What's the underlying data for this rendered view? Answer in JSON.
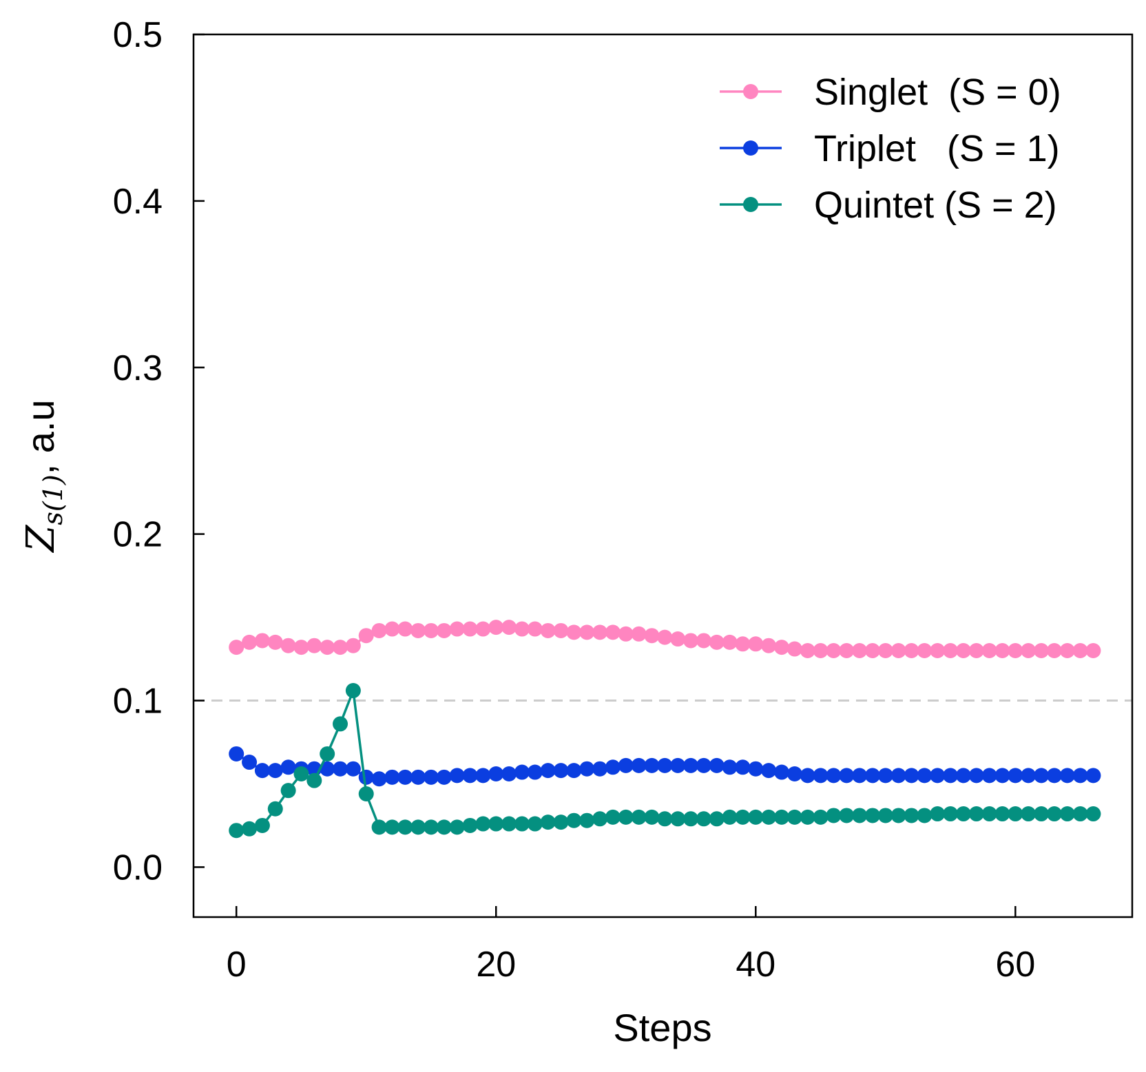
{
  "chart_data": {
    "type": "line",
    "xlabel": "Steps",
    "ylabel": {
      "symbol": "Z",
      "subscript": "s(1)",
      "suffix": ", a.u"
    },
    "xlim": [
      -3.3,
      69
    ],
    "ylim": [
      -0.03,
      0.5
    ],
    "xticks": [
      0,
      20,
      40,
      60
    ],
    "yticks": [
      0.0,
      0.1,
      0.2,
      0.3,
      0.4,
      0.5
    ],
    "xtick_labels": [
      "0",
      "20",
      "40",
      "60"
    ],
    "ytick_labels": [
      "0.0",
      "0.1",
      "0.2",
      "0.3",
      "0.4",
      "0.5"
    ],
    "reference_line": {
      "y": 0.1,
      "style": "dashed",
      "color": "#cccccc"
    },
    "grid": false,
    "legend_position": "top-right",
    "x": [
      0,
      1,
      2,
      3,
      4,
      5,
      6,
      7,
      8,
      9,
      10,
      11,
      12,
      13,
      14,
      15,
      16,
      17,
      18,
      19,
      20,
      21,
      22,
      23,
      24,
      25,
      26,
      27,
      28,
      29,
      30,
      31,
      32,
      33,
      34,
      35,
      36,
      37,
      38,
      39,
      40,
      41,
      42,
      43,
      44,
      45,
      46,
      47,
      48,
      49,
      50,
      51,
      52,
      53,
      54,
      55,
      56,
      57,
      58,
      59,
      60,
      61,
      62,
      63,
      64,
      65,
      66
    ],
    "series": [
      {
        "name": "Singlet  (S = 0)",
        "color": "#ff85c0",
        "values": [
          0.132,
          0.135,
          0.136,
          0.135,
          0.133,
          0.132,
          0.133,
          0.132,
          0.132,
          0.133,
          0.139,
          0.142,
          0.143,
          0.143,
          0.142,
          0.142,
          0.142,
          0.143,
          0.143,
          0.143,
          0.144,
          0.144,
          0.143,
          0.143,
          0.142,
          0.142,
          0.141,
          0.141,
          0.141,
          0.141,
          0.14,
          0.14,
          0.139,
          0.138,
          0.137,
          0.136,
          0.136,
          0.135,
          0.135,
          0.134,
          0.134,
          0.133,
          0.132,
          0.131,
          0.13,
          0.13,
          0.13,
          0.13,
          0.13,
          0.13,
          0.13,
          0.13,
          0.13,
          0.13,
          0.13,
          0.13,
          0.13,
          0.13,
          0.13,
          0.13,
          0.13,
          0.13,
          0.13,
          0.13,
          0.13,
          0.13,
          0.13
        ]
      },
      {
        "name": "Triplet   (S = 1)",
        "color": "#0b3ee0",
        "values": [
          0.068,
          0.063,
          0.058,
          0.058,
          0.06,
          0.059,
          0.059,
          0.059,
          0.059,
          0.059,
          0.054,
          0.053,
          0.054,
          0.054,
          0.054,
          0.054,
          0.054,
          0.055,
          0.055,
          0.055,
          0.056,
          0.056,
          0.057,
          0.057,
          0.058,
          0.058,
          0.058,
          0.059,
          0.059,
          0.06,
          0.061,
          0.061,
          0.061,
          0.061,
          0.061,
          0.061,
          0.061,
          0.061,
          0.06,
          0.06,
          0.059,
          0.058,
          0.057,
          0.056,
          0.055,
          0.055,
          0.055,
          0.055,
          0.055,
          0.055,
          0.055,
          0.055,
          0.055,
          0.055,
          0.055,
          0.055,
          0.055,
          0.055,
          0.055,
          0.055,
          0.055,
          0.055,
          0.055,
          0.055,
          0.055,
          0.055,
          0.055
        ]
      },
      {
        "name": "Quintet (S = 2)",
        "color": "#049080",
        "values": [
          0.022,
          0.023,
          0.025,
          0.035,
          0.046,
          0.056,
          0.052,
          0.068,
          0.086,
          0.106,
          0.044,
          0.024,
          0.024,
          0.024,
          0.024,
          0.024,
          0.024,
          0.024,
          0.025,
          0.026,
          0.026,
          0.026,
          0.026,
          0.026,
          0.027,
          0.027,
          0.028,
          0.028,
          0.029,
          0.03,
          0.03,
          0.03,
          0.03,
          0.029,
          0.029,
          0.029,
          0.029,
          0.029,
          0.03,
          0.03,
          0.03,
          0.03,
          0.03,
          0.03,
          0.03,
          0.03,
          0.031,
          0.031,
          0.031,
          0.031,
          0.031,
          0.031,
          0.031,
          0.031,
          0.032,
          0.032,
          0.032,
          0.032,
          0.032,
          0.032,
          0.032,
          0.032,
          0.032,
          0.032,
          0.032,
          0.032,
          0.032
        ]
      }
    ]
  }
}
